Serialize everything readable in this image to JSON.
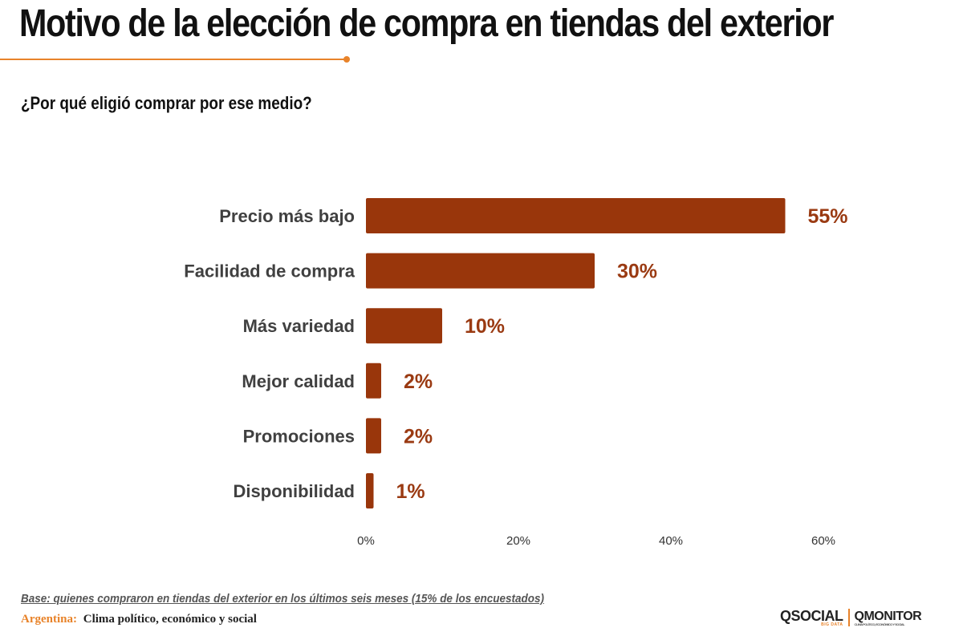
{
  "header": {
    "title": "Motivo de la elección de compra en tiendas del exterior",
    "subtitle": "¿Por qué eligió comprar por ese medio?"
  },
  "chart_data": {
    "type": "bar",
    "orientation": "horizontal",
    "categories": [
      "Precio más bajo",
      "Facilidad de compra",
      "Más variedad",
      "Mejor calidad",
      "Promociones",
      "Disponibilidad"
    ],
    "values": [
      55,
      30,
      10,
      2,
      2,
      1
    ],
    "value_labels": [
      "55%",
      "30%",
      "10%",
      "2%",
      "2%",
      "1%"
    ],
    "x_ticks": [
      "0%",
      "20%",
      "40%",
      "60%"
    ],
    "xlim": [
      0,
      60
    ],
    "grid": false,
    "bar_color": "#99360b",
    "label_color": "#9a3a12"
  },
  "footer": {
    "base_note": "Base: quienes compraron en tiendas del exterior en los últimos seis meses (15% de los encuestados)",
    "country": "Argentina:",
    "description": "Clima político, económico y social"
  },
  "logos": {
    "qsocial": "QSOCIAL",
    "qsocial_sub": "BIG DATA",
    "qmonitor": "QMONITOR",
    "qmonitor_sub": "CLIMA POLÍTICO, ECONÓMICO Y SOCIAL"
  },
  "colors": {
    "accent": "#e8832a",
    "bar": "#99360b"
  }
}
